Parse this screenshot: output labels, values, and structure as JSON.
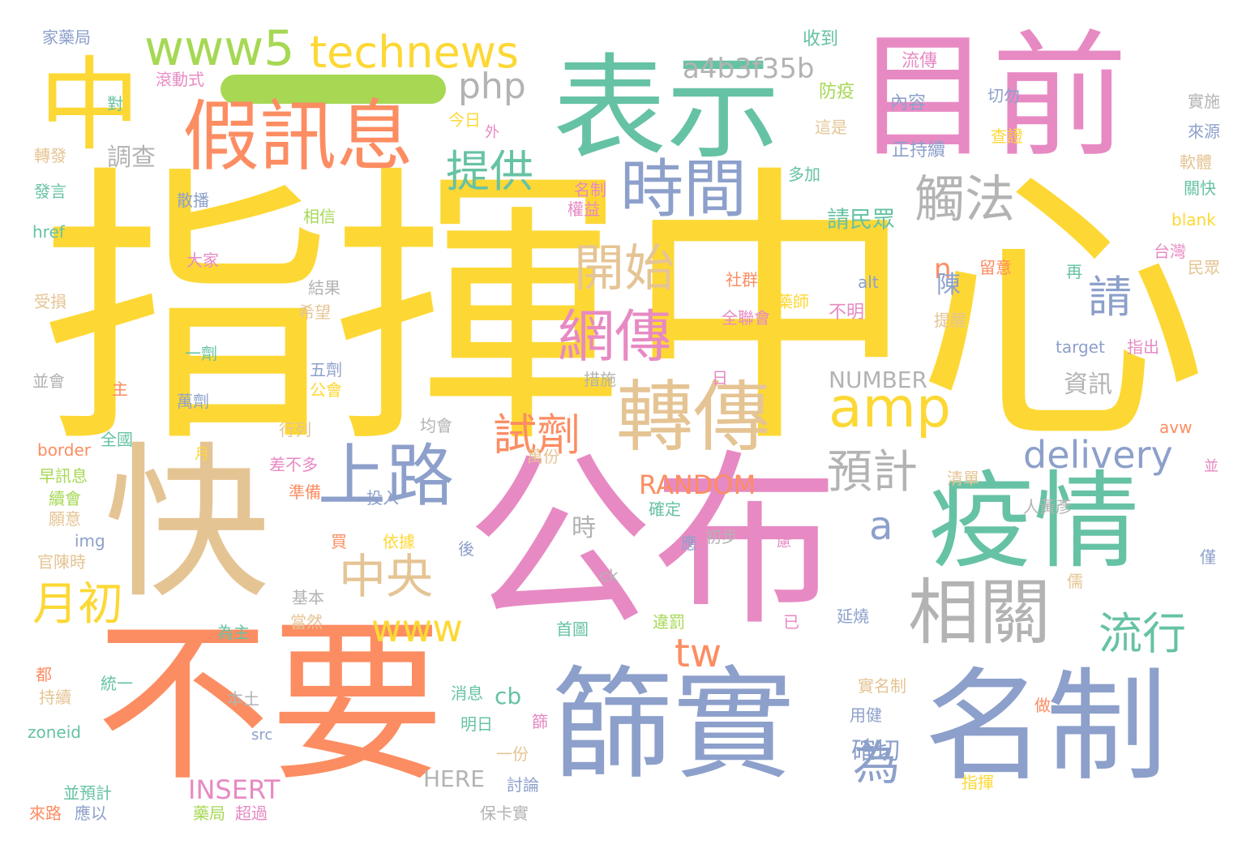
{
  "palette": {
    "yellow": "#fdd835",
    "pink": "#e78ac3",
    "teal": "#66c2a5",
    "orange": "#fc8d62",
    "blue": "#8da0cb",
    "tan": "#e5c494",
    "gray": "#b3b3b3",
    "green": "#a6d854"
  },
  "words": [
    {
      "text": "指揮中心",
      "color": "yellow"
    },
    {
      "text": "公布",
      "color": "pink"
    },
    {
      "text": "快",
      "color": "tan"
    },
    {
      "text": "不要",
      "color": "orange"
    },
    {
      "text": "目前",
      "color": "pink"
    },
    {
      "text": "表示",
      "color": "teal"
    },
    {
      "text": "疫情",
      "color": "teal"
    },
    {
      "text": "篩實",
      "color": "blue"
    },
    {
      "text": "名制",
      "color": "blue"
    },
    {
      "text": "中",
      "color": "yellow"
    },
    {
      "text": "假訊息",
      "color": "orange"
    },
    {
      "text": "轉傳",
      "color": "tan"
    },
    {
      "text": "時間",
      "color": "blue"
    },
    {
      "text": "相關",
      "color": "gray"
    },
    {
      "text": "上路",
      "color": "blue"
    },
    {
      "text": "amp",
      "color": "yellow"
    },
    {
      "text": "網傳",
      "color": "pink"
    },
    {
      "text": "開始",
      "color": "tan"
    },
    {
      "text": "觸法",
      "color": "gray"
    },
    {
      "text": "www5",
      "color": "green"
    },
    {
      "text": "technews",
      "color": "yellow"
    },
    {
      "text": "提供",
      "color": "teal"
    },
    {
      "text": "中央",
      "color": "tan"
    },
    {
      "text": "月初",
      "color": "yellow"
    },
    {
      "text": "流行",
      "color": "teal"
    },
    {
      "text": "預計",
      "color": "gray"
    },
    {
      "text": "試劑",
      "color": "orange"
    },
    {
      "text": "www",
      "color": "yellow"
    },
    {
      "text": "delivery",
      "color": "blue"
    },
    {
      "text": "php",
      "color": "gray"
    },
    {
      "text": "a4b3f35b",
      "color": "gray"
    },
    {
      "text": "tw",
      "color": "orange"
    },
    {
      "text": "為",
      "color": "blue"
    },
    {
      "text": "請",
      "color": "blue"
    },
    {
      "text": "a",
      "color": "blue"
    },
    {
      "text": "n",
      "color": "orange"
    },
    {
      "text": "RANDOM",
      "color": "orange"
    },
    {
      "text": "INSERT",
      "color": "pink"
    },
    {
      "text": "NUMBER",
      "color": "gray"
    },
    {
      "text": "HERE",
      "color": "gray"
    },
    {
      "text": "調查",
      "color": "gray"
    },
    {
      "text": "請民眾",
      "color": "teal"
    },
    {
      "text": "陳",
      "color": "blue"
    },
    {
      "text": "資訊",
      "color": "gray"
    },
    {
      "text": "確切",
      "color": "blue"
    },
    {
      "text": "cb",
      "color": "teal"
    },
    {
      "text": "時",
      "color": "gray"
    },
    {
      "text": "流傳",
      "color": "pink"
    },
    {
      "text": "內容",
      "color": "blue"
    },
    {
      "text": "正持續",
      "color": "blue"
    },
    {
      "text": "收到",
      "color": "teal"
    },
    {
      "text": "防疫",
      "color": "green"
    },
    {
      "text": "這是",
      "color": "tan"
    },
    {
      "text": "多加",
      "color": "teal"
    },
    {
      "text": "切勿",
      "color": "blue"
    },
    {
      "text": "查證",
      "color": "yellow"
    },
    {
      "text": "實施",
      "color": "gray"
    },
    {
      "text": "來源",
      "color": "blue"
    },
    {
      "text": "軟體",
      "color": "tan"
    },
    {
      "text": "關快",
      "color": "teal"
    },
    {
      "text": "blank",
      "color": "yellow"
    },
    {
      "text": "台灣",
      "color": "pink"
    },
    {
      "text": "民眾",
      "color": "tan"
    },
    {
      "text": "留意",
      "color": "orange"
    },
    {
      "text": "再",
      "color": "teal"
    },
    {
      "text": "提醒",
      "color": "tan"
    },
    {
      "text": "指出",
      "color": "pink"
    },
    {
      "text": "target",
      "color": "blue"
    },
    {
      "text": "alt",
      "color": "blue"
    },
    {
      "text": "不明",
      "color": "pink"
    },
    {
      "text": "社群",
      "color": "orange"
    },
    {
      "text": "藥師",
      "color": "yellow"
    },
    {
      "text": "全聯會",
      "color": "pink"
    },
    {
      "text": "家藥局",
      "color": "blue"
    },
    {
      "text": "滾動式",
      "color": "pink"
    },
    {
      "text": "對",
      "color": "teal"
    },
    {
      "text": "今日",
      "color": "yellow"
    },
    {
      "text": "外",
      "color": "pink"
    },
    {
      "text": "轉發",
      "color": "tan"
    },
    {
      "text": "發言",
      "color": "teal"
    },
    {
      "text": "散播",
      "color": "blue"
    },
    {
      "text": "名制",
      "color": "pink"
    },
    {
      "text": "權益",
      "color": "pink"
    },
    {
      "text": "相信",
      "color": "green"
    },
    {
      "text": "href",
      "color": "teal"
    },
    {
      "text": "大家",
      "color": "pink"
    },
    {
      "text": "結果",
      "color": "gray"
    },
    {
      "text": "受損",
      "color": "tan"
    },
    {
      "text": "希望",
      "color": "tan"
    },
    {
      "text": "一劑",
      "color": "teal"
    },
    {
      "text": "五劑",
      "color": "blue"
    },
    {
      "text": "公會",
      "color": "yellow"
    },
    {
      "text": "萬劑",
      "color": "blue"
    },
    {
      "text": "並會",
      "color": "gray"
    },
    {
      "text": "主",
      "color": "orange"
    },
    {
      "text": "措施",
      "color": "gray"
    },
    {
      "text": "日",
      "color": "pink"
    },
    {
      "text": "均會",
      "color": "gray"
    },
    {
      "text": "全國",
      "color": "teal"
    },
    {
      "text": "行列",
      "color": "tan"
    },
    {
      "text": "border",
      "color": "orange"
    },
    {
      "text": "萬份",
      "color": "tan"
    },
    {
      "text": "早訊息",
      "color": "green"
    },
    {
      "text": "月",
      "color": "yellow"
    },
    {
      "text": "差不多",
      "color": "pink"
    },
    {
      "text": "準備",
      "color": "orange"
    },
    {
      "text": "投入",
      "color": "blue"
    },
    {
      "text": "續會",
      "color": "green"
    },
    {
      "text": "願意",
      "color": "tan"
    },
    {
      "text": "確定",
      "color": "teal"
    },
    {
      "text": "初步",
      "color": "gray"
    },
    {
      "text": "應",
      "color": "blue"
    },
    {
      "text": "慮",
      "color": "pink"
    },
    {
      "text": "img",
      "color": "blue"
    },
    {
      "text": "買",
      "color": "orange"
    },
    {
      "text": "依據",
      "color": "yellow"
    },
    {
      "text": "後",
      "color": "blue"
    },
    {
      "text": "官陳時",
      "color": "tan"
    },
    {
      "text": "ck",
      "color": "gray"
    },
    {
      "text": "基本",
      "color": "gray"
    },
    {
      "text": "為主",
      "color": "teal"
    },
    {
      "text": "當然",
      "color": "tan"
    },
    {
      "text": "首圖",
      "color": "teal"
    },
    {
      "text": "違罰",
      "color": "green"
    },
    {
      "text": "已",
      "color": "pink"
    },
    {
      "text": "延燒",
      "color": "blue"
    },
    {
      "text": "清單",
      "color": "tan"
    },
    {
      "text": "人黃彥",
      "color": "gray"
    },
    {
      "text": "並",
      "color": "pink"
    },
    {
      "text": "avw",
      "color": "orange"
    },
    {
      "text": "僅",
      "color": "blue"
    },
    {
      "text": "儒",
      "color": "tan"
    },
    {
      "text": "都",
      "color": "orange"
    },
    {
      "text": "統一",
      "color": "teal"
    },
    {
      "text": "持續",
      "color": "tan"
    },
    {
      "text": "本土",
      "color": "gray"
    },
    {
      "text": "消息",
      "color": "teal"
    },
    {
      "text": "實名制",
      "color": "tan"
    },
    {
      "text": "做",
      "color": "orange"
    },
    {
      "text": "用健",
      "color": "blue"
    },
    {
      "text": "zoneid",
      "color": "teal"
    },
    {
      "text": "src",
      "color": "blue"
    },
    {
      "text": "明日",
      "color": "teal"
    },
    {
      "text": "篩",
      "color": "pink"
    },
    {
      "text": "一份",
      "color": "tan"
    },
    {
      "text": "並預計",
      "color": "teal"
    },
    {
      "text": "討論",
      "color": "blue"
    },
    {
      "text": "指揮",
      "color": "yellow"
    },
    {
      "text": "來路",
      "color": "orange"
    },
    {
      "text": "應以",
      "color": "blue"
    },
    {
      "text": "藥局",
      "color": "green"
    },
    {
      "text": "超過",
      "color": "pink"
    },
    {
      "text": "保卡實",
      "color": "gray"
    }
  ]
}
